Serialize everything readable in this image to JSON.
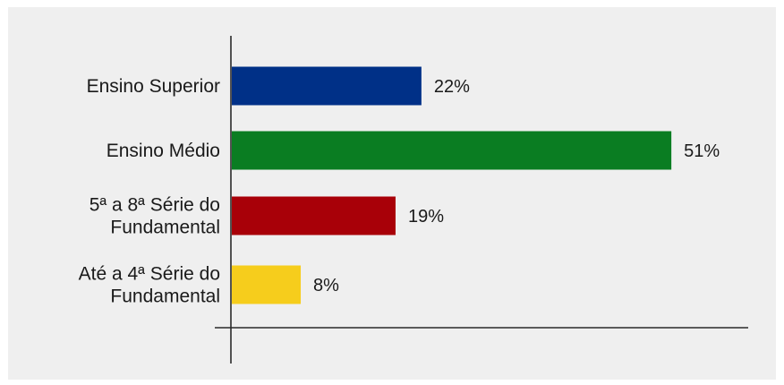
{
  "chart_data": {
    "type": "bar",
    "orientation": "horizontal",
    "categories": [
      [
        "Ensino Superior"
      ],
      [
        "Ensino Médio"
      ],
      [
        "5ª a 8ª Série do",
        "Fundamental"
      ],
      [
        "Até a 4ª Série do",
        "Fundamental"
      ]
    ],
    "values": [
      22,
      51,
      19,
      8
    ],
    "value_labels": [
      "22%",
      "51%",
      "19%",
      "8%"
    ],
    "colors": [
      "#003087",
      "#0a7d22",
      "#a80008",
      "#f6cd1c"
    ],
    "xlim": [
      0,
      60
    ],
    "grid": false,
    "legend": "none"
  }
}
